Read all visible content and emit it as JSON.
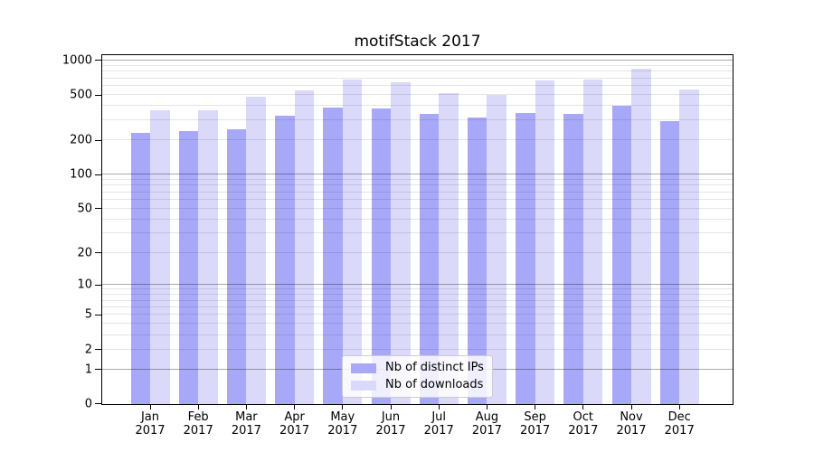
{
  "chart_data": {
    "type": "bar",
    "title": "motifStack 2017",
    "scale": "log1p",
    "year": "2017",
    "categories": [
      "Jan",
      "Feb",
      "Mar",
      "Apr",
      "May",
      "Jun",
      "Jul",
      "Aug",
      "Sep",
      "Oct",
      "Nov",
      "Dec"
    ],
    "series": [
      {
        "name": "Nb of distinct IPs",
        "color": "#a8a8f8",
        "values": [
          234,
          243,
          252,
          330,
          390,
          378,
          339,
          320,
          345,
          339,
          401,
          297
        ]
      },
      {
        "name": "Nb of downloads",
        "color": "#dad9f9",
        "values": [
          364,
          364,
          482,
          545,
          682,
          641,
          515,
          503,
          665,
          685,
          843,
          561
        ]
      }
    ],
    "y_ticks": [
      0,
      1,
      2,
      5,
      10,
      20,
      50,
      100,
      200,
      500,
      1000
    ],
    "ylim": [
      0,
      1113
    ],
    "grid": true,
    "legend_position": "lower-center",
    "colors": {
      "grid_major": "rgba(0,0,0,0.33)",
      "grid_minor": "rgba(0,0,0,0.10)",
      "axis": "#000000",
      "background": "#ffffff"
    }
  }
}
